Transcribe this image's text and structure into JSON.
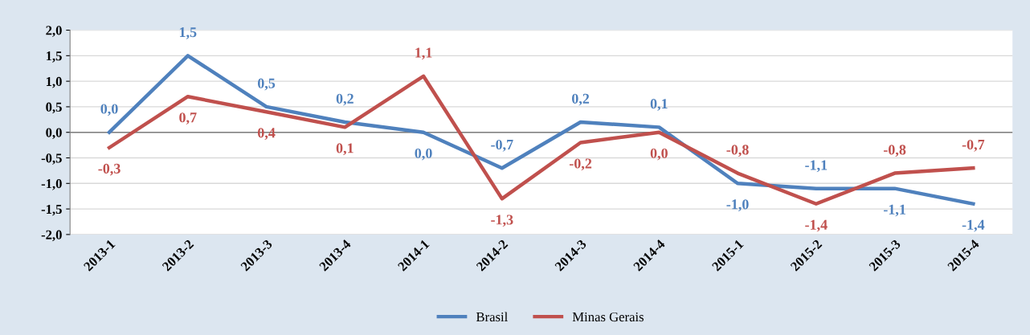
{
  "chart_data": {
    "type": "line",
    "categories": [
      "2013-1",
      "2013-2",
      "2013-3",
      "2013-4",
      "2014-1",
      "2014-2",
      "2014-3",
      "2014-4",
      "2015-1",
      "2015-2",
      "2015-3",
      "2015-4"
    ],
    "series": [
      {
        "name": "Brasil",
        "color": "#4f81bd",
        "values": [
          0.0,
          1.5,
          0.5,
          0.2,
          0.0,
          -0.7,
          0.2,
          0.1,
          -1.0,
          -1.1,
          -1.1,
          -1.4
        ],
        "value_labels": [
          "0,0",
          "1,5",
          "0,5",
          "0,2",
          "0,0",
          "-0,7",
          "0,2",
          "0,1",
          "-1,0",
          "-1,1",
          "-1,1",
          "-1,4"
        ]
      },
      {
        "name": "Minas Gerais",
        "color": "#c0504d",
        "values": [
          -0.3,
          0.7,
          0.4,
          0.1,
          1.1,
          -1.3,
          -0.2,
          0.0,
          -0.8,
          -1.4,
          -0.8,
          -0.7
        ],
        "value_labels": [
          "-0,3",
          "0,7",
          "0,4",
          "0,1",
          "1,1",
          "-1,3",
          "-0,2",
          "0,0",
          "-0,8",
          "-1,4",
          "-0,8",
          "-0,7"
        ]
      }
    ],
    "ylim": [
      -2.0,
      2.0
    ],
    "yticks": [
      {
        "value": -2.0,
        "label": "-2,0"
      },
      {
        "value": -1.5,
        "label": "-1,5"
      },
      {
        "value": -1.0,
        "label": "-1,0"
      },
      {
        "value": -0.5,
        "label": "-0,5"
      },
      {
        "value": 0.0,
        "label": "0,0"
      },
      {
        "value": 0.5,
        "label": "0,5"
      },
      {
        "value": 1.0,
        "label": "1,0"
      },
      {
        "value": 1.5,
        "label": "1,5"
      },
      {
        "value": 2.0,
        "label": "2,0"
      }
    ],
    "ref_lines": [
      {
        "axis": "y",
        "value": 0.0,
        "color": "#7f7f7f"
      }
    ],
    "grid": "y",
    "legend": "bottom",
    "marker": "none",
    "line_style": "solid"
  }
}
